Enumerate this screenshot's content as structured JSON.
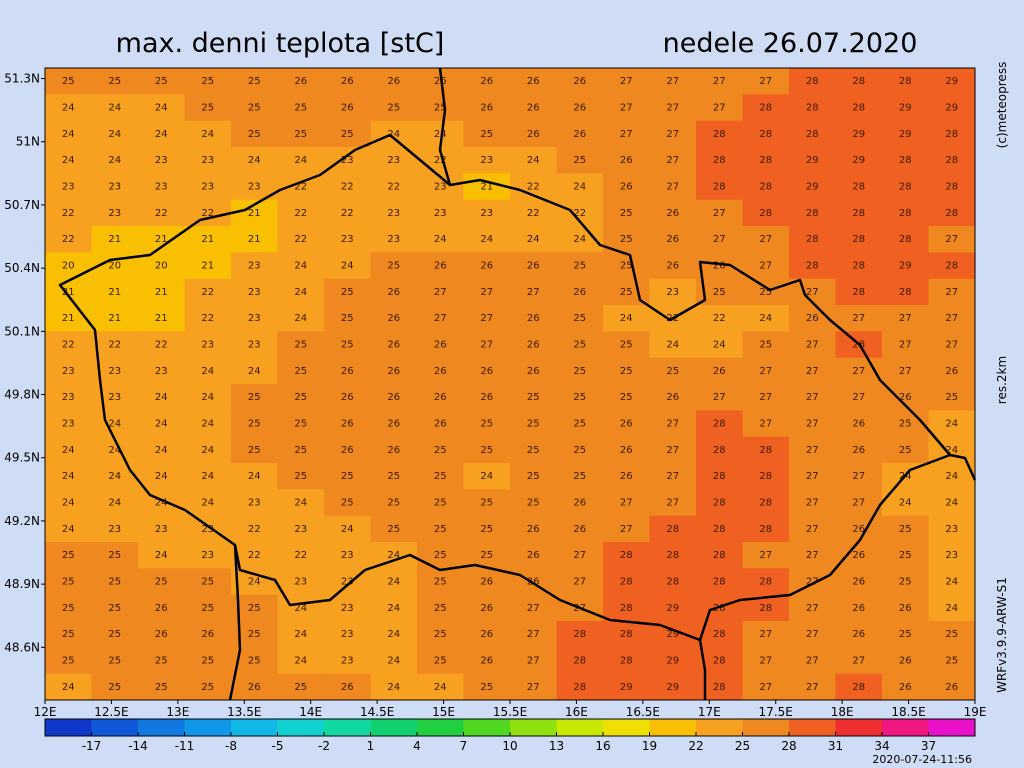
{
  "header": {
    "title": "max. denni teplota [stC]",
    "date": "nedele 26.07.2020"
  },
  "side_labels": [
    "(c)meteopress",
    "res.2km",
    "WRFv3.9.9-ARW-S1"
  ],
  "timestamp": "2020-07-24-11:56",
  "map": {
    "xlim": [
      12,
      19
    ],
    "ylim": [
      48.35,
      51.35
    ],
    "xticks": [
      {
        "value": 12,
        "label": "12E"
      },
      {
        "value": 12.5,
        "label": "12.5E"
      },
      {
        "value": 13,
        "label": "13E"
      },
      {
        "value": 13.5,
        "label": "13.5E"
      },
      {
        "value": 14,
        "label": "14E"
      },
      {
        "value": 14.5,
        "label": "14.5E"
      },
      {
        "value": 15,
        "label": "15E"
      },
      {
        "value": 15.5,
        "label": "15.5E"
      },
      {
        "value": 16,
        "label": "16E"
      },
      {
        "value": 16.5,
        "label": "16.5E"
      },
      {
        "value": 17,
        "label": "17E"
      },
      {
        "value": 17.5,
        "label": "17.5E"
      },
      {
        "value": 18,
        "label": "18E"
      },
      {
        "value": 18.5,
        "label": "18.5E"
      },
      {
        "value": 19,
        "label": "19E"
      }
    ],
    "yticks": [
      {
        "value": 51.3,
        "label": "51.3N"
      },
      {
        "value": 51,
        "label": "51N"
      },
      {
        "value": 50.7,
        "label": "50.7N"
      },
      {
        "value": 50.4,
        "label": "50.4N"
      },
      {
        "value": 50.1,
        "label": "50.1N"
      },
      {
        "value": 49.8,
        "label": "49.8N"
      },
      {
        "value": 49.5,
        "label": "49.5N"
      },
      {
        "value": 49.2,
        "label": "49.2N"
      },
      {
        "value": 48.9,
        "label": "48.9N"
      },
      {
        "value": 48.6,
        "label": "48.6N"
      }
    ],
    "grid": [
      [
        25,
        25,
        25,
        25,
        25,
        26,
        26,
        26,
        26,
        26,
        26,
        26,
        27,
        27,
        27,
        27,
        28,
        28,
        28,
        29
      ],
      [
        24,
        24,
        24,
        25,
        25,
        25,
        26,
        25,
        25,
        26,
        26,
        26,
        27,
        27,
        27,
        28,
        28,
        28,
        29,
        29
      ],
      [
        24,
        24,
        24,
        24,
        25,
        25,
        25,
        24,
        24,
        25,
        26,
        26,
        27,
        27,
        28,
        28,
        28,
        29,
        29,
        28
      ],
      [
        24,
        24,
        23,
        23,
        24,
        24,
        23,
        23,
        22,
        23,
        24,
        25,
        26,
        27,
        28,
        28,
        29,
        29,
        28,
        28
      ],
      [
        23,
        23,
        23,
        23,
        23,
        22,
        22,
        22,
        23,
        21,
        22,
        24,
        26,
        27,
        28,
        28,
        29,
        28,
        28,
        28
      ],
      [
        22,
        23,
        22,
        22,
        21,
        22,
        22,
        23,
        23,
        23,
        22,
        22,
        25,
        26,
        27,
        28,
        28,
        28,
        28,
        28
      ],
      [
        22,
        21,
        21,
        21,
        21,
        22,
        23,
        23,
        24,
        24,
        24,
        24,
        25,
        26,
        27,
        27,
        28,
        28,
        28,
        27
      ],
      [
        20,
        20,
        20,
        21,
        23,
        24,
        24,
        25,
        26,
        26,
        26,
        25,
        25,
        26,
        26,
        27,
        28,
        28,
        29,
        28
      ],
      [
        21,
        21,
        21,
        22,
        23,
        24,
        25,
        26,
        27,
        27,
        27,
        26,
        25,
        23,
        25,
        25,
        27,
        28,
        28,
        27
      ],
      [
        21,
        21,
        21,
        22,
        23,
        24,
        25,
        26,
        27,
        27,
        26,
        25,
        24,
        22,
        22,
        24,
        26,
        27,
        27,
        27
      ],
      [
        22,
        22,
        22,
        23,
        23,
        25,
        25,
        26,
        26,
        27,
        26,
        25,
        25,
        24,
        24,
        25,
        27,
        28,
        27,
        27
      ],
      [
        23,
        23,
        23,
        24,
        24,
        25,
        26,
        26,
        26,
        26,
        26,
        25,
        25,
        25,
        26,
        27,
        27,
        27,
        27,
        26
      ],
      [
        23,
        23,
        24,
        24,
        25,
        25,
        26,
        26,
        26,
        26,
        25,
        25,
        25,
        26,
        27,
        27,
        27,
        27,
        26,
        25
      ],
      [
        23,
        24,
        24,
        24,
        25,
        25,
        26,
        26,
        26,
        25,
        25,
        25,
        26,
        27,
        28,
        27,
        27,
        26,
        25,
        24
      ],
      [
        24,
        24,
        24,
        24,
        25,
        25,
        26,
        26,
        25,
        25,
        25,
        25,
        26,
        27,
        28,
        28,
        27,
        26,
        25,
        24
      ],
      [
        24,
        24,
        24,
        24,
        24,
        25,
        25,
        25,
        25,
        24,
        25,
        25,
        26,
        27,
        28,
        28,
        27,
        27,
        24,
        24
      ],
      [
        24,
        24,
        24,
        24,
        23,
        24,
        25,
        25,
        25,
        25,
        25,
        26,
        27,
        27,
        28,
        28,
        27,
        27,
        24,
        24
      ],
      [
        24,
        23,
        23,
        23,
        22,
        23,
        24,
        25,
        25,
        25,
        26,
        26,
        27,
        28,
        28,
        28,
        27,
        26,
        25,
        23
      ],
      [
        25,
        25,
        24,
        23,
        22,
        22,
        23,
        24,
        25,
        25,
        26,
        27,
        28,
        28,
        28,
        27,
        27,
        26,
        25,
        23
      ],
      [
        25,
        25,
        25,
        25,
        24,
        23,
        23,
        24,
        25,
        26,
        26,
        27,
        28,
        28,
        28,
        28,
        27,
        26,
        25,
        24
      ],
      [
        25,
        25,
        26,
        25,
        25,
        24,
        23,
        24,
        25,
        26,
        27,
        27,
        28,
        29,
        28,
        28,
        27,
        26,
        26,
        24
      ],
      [
        25,
        25,
        26,
        26,
        25,
        24,
        23,
        24,
        25,
        26,
        27,
        28,
        28,
        29,
        28,
        27,
        27,
        26,
        25,
        25
      ],
      [
        25,
        25,
        25,
        25,
        25,
        24,
        23,
        24,
        25,
        26,
        27,
        28,
        28,
        29,
        28,
        27,
        27,
        27,
        26,
        25
      ],
      [
        24,
        25,
        25,
        25,
        26,
        25,
        26,
        24,
        24,
        25,
        27,
        28,
        29,
        29,
        28,
        27,
        27,
        28,
        26,
        26
      ]
    ]
  },
  "colorbar": {
    "lim": [
      -20,
      40
    ],
    "ticks": [
      -17,
      -14,
      -11,
      -8,
      -5,
      -2,
      1,
      4,
      7,
      10,
      13,
      16,
      19,
      22,
      25,
      28,
      31,
      34,
      37
    ],
    "colors": [
      "#1038c8",
      "#1058d8",
      "#1078e0",
      "#1098e8",
      "#10b8e8",
      "#10d0d0",
      "#10d8a0",
      "#10d070",
      "#20d040",
      "#50d820",
      "#90e010",
      "#c8e800",
      "#f0e000",
      "#f8c000",
      "#f8a020",
      "#f08820",
      "#f06020",
      "#f03030",
      "#f01880",
      "#e810c8"
    ]
  }
}
